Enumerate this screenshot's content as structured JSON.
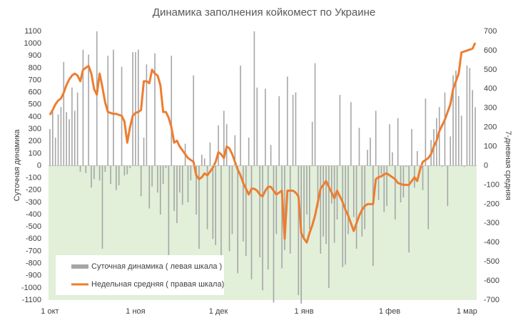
{
  "chart_data": {
    "type": "combo",
    "title": "Динамика заполнения койкомест по Украине",
    "y_label": "Суточная динамика",
    "y2_label": "7-дневная средняя",
    "categories": [
      "1 окт",
      null,
      null,
      null,
      null,
      null,
      null,
      null,
      null,
      null,
      null,
      null,
      null,
      null,
      null,
      null,
      null,
      null,
      null,
      null,
      null,
      null,
      null,
      null,
      null,
      null,
      null,
      null,
      null,
      null,
      null,
      "1 ноя",
      null,
      null,
      null,
      null,
      null,
      null,
      null,
      null,
      null,
      null,
      null,
      null,
      null,
      null,
      null,
      null,
      null,
      null,
      null,
      null,
      null,
      null,
      null,
      null,
      null,
      null,
      null,
      null,
      null,
      "1 дек",
      null,
      null,
      null,
      null,
      null,
      null,
      null,
      null,
      null,
      null,
      null,
      null,
      null,
      null,
      null,
      null,
      null,
      null,
      null,
      null,
      null,
      null,
      null,
      null,
      null,
      null,
      null,
      null,
      null,
      null,
      "1 янв",
      null,
      null,
      null,
      null,
      null,
      null,
      null,
      null,
      null,
      null,
      null,
      null,
      null,
      null,
      null,
      null,
      null,
      null,
      null,
      null,
      null,
      null,
      null,
      null,
      null,
      null,
      null,
      null,
      null,
      null,
      "1 фев",
      null,
      null,
      null,
      null,
      null,
      null,
      null,
      null,
      null,
      null,
      null,
      null,
      null,
      null,
      null,
      null,
      null,
      null,
      null,
      null,
      null,
      null,
      null,
      null,
      null,
      null,
      null,
      "1 мар",
      null,
      null,
      null
    ],
    "series": [
      {
        "name": "Суточная динамика ( левая шкала )",
        "type": "bar",
        "color": "#a6a6a6",
        "values": [
          300,
          440,
          230,
          420,
          480,
          850,
          440,
          380,
          640,
          450,
          600,
          -50,
          950,
          -60,
          910,
          -180,
          -110,
          1100,
          -120,
          -680,
          -50,
          900,
          -150,
          950,
          -200,
          -160,
          810,
          -80,
          -70,
          -20,
          930,
          930,
          950,
          -250,
          230,
          830,
          -350,
          -170,
          920,
          -220,
          -400,
          -150,
          -20,
          -750,
          900,
          -370,
          -470,
          -220,
          -320,
          180,
          -300,
          -120,
          740,
          -400,
          -680,
          90,
          60,
          -520,
          190,
          -600,
          -650,
          330,
          -850,
          450,
          340,
          -700,
          -560,
          250,
          -880,
          820,
          -620,
          -740,
          230,
          -930,
          1100,
          640,
          -750,
          -1020,
          630,
          -850,
          170,
          -1120,
          -560,
          570,
          -840,
          -690,
          730,
          -720,
          580,
          600,
          -1060,
          -1130,
          -590,
          -400,
          -520,
          360,
          840,
          -340,
          -720,
          -580,
          -640,
          -1000,
          -310,
          -630,
          -440,
          580,
          -830,
          -810,
          -560,
          520,
          -420,
          -680,
          310,
          -580,
          -520,
          130,
          230,
          -820,
          450,
          -280,
          -70,
          -380,
          -330,
          340,
          110,
          -440,
          390,
          -300,
          -260,
          -10,
          -710,
          300,
          -180,
          120,
          -20,
          -200,
          550,
          -520,
          210,
          300,
          390,
          480,
          -10,
          600,
          -330,
          240,
          740,
          780,
          570,
          410,
          -10,
          820,
          800,
          620,
          480
        ]
      },
      {
        "name": "Недельная средняя ( правая шкала)",
        "type": "line",
        "axis": "y2",
        "color": "#ed7d31",
        "values": [
          265,
          290,
          320,
          340,
          350,
          380,
          420,
          450,
          470,
          480,
          470,
          440,
          500,
          510,
          520,
          480,
          400,
          370,
          480,
          410,
          330,
          280,
          275,
          270,
          270,
          265,
          260,
          230,
          120,
          200,
          260,
          275,
          280,
          290,
          440,
          440,
          430,
          500,
          480,
          470,
          420,
          280,
          280,
          250,
          200,
          120,
          130,
          100,
          80,
          60,
          40,
          30,
          20,
          -50,
          -70,
          -60,
          -40,
          -50,
          -30,
          -10,
          20,
          70,
          60,
          40,
          100,
          90,
          60,
          20,
          -20,
          -50,
          -90,
          -120,
          -150,
          -120,
          -120,
          -130,
          -150,
          -160,
          -130,
          -110,
          -110,
          -130,
          -150,
          -140,
          -130,
          -380,
          -130,
          -130,
          -130,
          -140,
          -160,
          -350,
          -380,
          -400,
          -350,
          -310,
          -260,
          -190,
          -120,
          -100,
          -80,
          -110,
          -140,
          -170,
          -130,
          -160,
          -190,
          -230,
          -260,
          -300,
          -340,
          -300,
          -260,
          -230,
          -210,
          -200,
          -200,
          -200,
          -70,
          -60,
          -55,
          -45,
          -40,
          -50,
          -60,
          -70,
          -90,
          -95,
          -100,
          -100,
          -100,
          -80,
          -60,
          -80,
          -20,
          20,
          30,
          40,
          60,
          100,
          130,
          180,
          210,
          240,
          280,
          320,
          400,
          440,
          480,
          590,
          595,
          600,
          605,
          610,
          640
        ]
      }
    ],
    "ylim": [
      -1100,
      1100
    ],
    "yticks": [
      -1100,
      -1000,
      -900,
      -800,
      -700,
      -600,
      -500,
      -400,
      -300,
      -200,
      -100,
      0,
      100,
      200,
      300,
      400,
      500,
      600,
      700,
      800,
      900,
      1000,
      1100
    ],
    "y2lim": [
      -700,
      700
    ],
    "y2ticks": [
      -700,
      -600,
      -500,
      -400,
      -300,
      -200,
      -100,
      0,
      100,
      200,
      300,
      400,
      500,
      600,
      700
    ],
    "negative_fill": "#e2efd9",
    "legend": "lower left"
  }
}
